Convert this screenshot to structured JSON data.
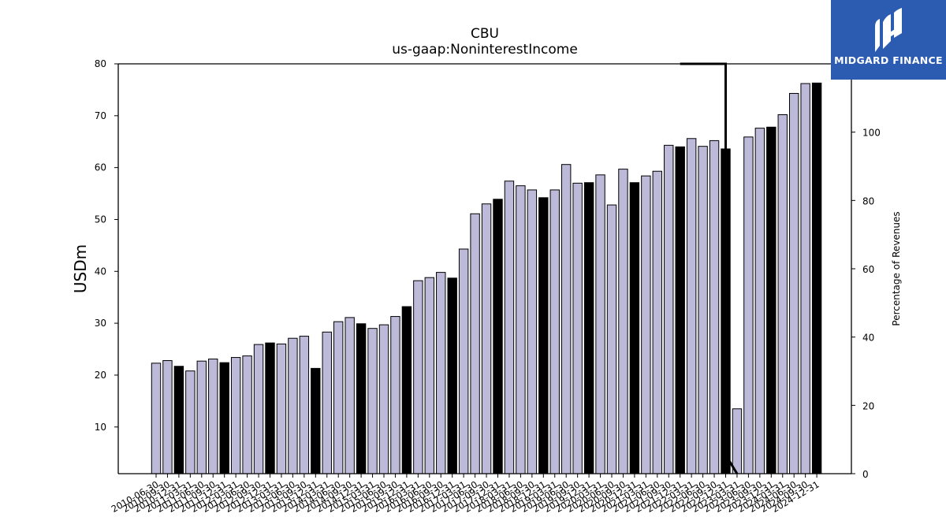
{
  "chart_data": {
    "type": "bar",
    "title": "CBU",
    "subtitle": "us-gaap:NoninterestIncome",
    "ylabel": "USDm",
    "ylabel_right": "Percentage of Revenues",
    "ylim": [
      1,
      80
    ],
    "ylim_right": [
      0,
      120
    ],
    "yticks": [
      10,
      20,
      30,
      40,
      50,
      60,
      70,
      80
    ],
    "yticks_right": [
      0,
      20,
      40,
      60,
      80,
      100
    ],
    "colors": {
      "quarter": "#bcb9d9",
      "annual": "#000000",
      "edge": "#000000"
    },
    "categories": [
      "2010-06-30",
      "2010-09-30",
      "2010-12-31",
      "2011-03-31",
      "2011-06-30",
      "2011-09-30",
      "2011-12-31",
      "2012-03-31",
      "2012-06-30",
      "2012-09-30",
      "2012-12-31",
      "2013-03-31",
      "2013-06-30",
      "2013-09-30",
      "2013-12-31",
      "2014-03-31",
      "2014-06-30",
      "2014-09-30",
      "2014-12-31",
      "2015-03-31",
      "2015-06-30",
      "2015-09-30",
      "2015-12-31",
      "2016-03-31",
      "2016-06-30",
      "2016-09-30",
      "2016-12-31",
      "2017-03-31",
      "2017-06-30",
      "2017-09-30",
      "2017-12-31",
      "2018-03-31",
      "2018-06-30",
      "2018-09-30",
      "2018-12-31",
      "2019-03-31",
      "2019-06-30",
      "2019-09-30",
      "2019-12-31",
      "2020-03-31",
      "2020-06-30",
      "2020-09-30",
      "2020-12-31",
      "2021-03-31",
      "2021-06-30",
      "2021-09-30",
      "2021-12-31",
      "2022-03-31",
      "2022-06-30",
      "2022-09-30",
      "2022-12-31",
      "2023-03-31",
      "2023-06-30",
      "2023-09-30",
      "2023-12-31",
      "2024-03-31",
      "2024-06-30",
      "2024-09-30",
      "2024-12-31"
    ],
    "values": [
      22.3,
      22.8,
      21.7,
      20.8,
      22.7,
      23.1,
      22.4,
      23.4,
      23.7,
      25.9,
      26.2,
      26.0,
      27.1,
      27.5,
      21.3,
      28.3,
      30.3,
      31.1,
      29.9,
      29.0,
      29.7,
      31.3,
      33.2,
      38.2,
      38.8,
      39.8,
      38.7,
      44.3,
      51.1,
      53.0,
      53.9,
      57.4,
      56.5,
      55.7,
      54.2,
      55.7,
      60.6,
      57.0,
      57.1,
      58.6,
      52.8,
      59.7,
      57.1,
      58.4,
      59.3,
      64.3,
      64.0,
      65.6,
      64.1,
      65.2,
      63.6,
      13.5,
      65.9,
      67.6,
      67.8,
      70.2,
      74.3,
      76.2,
      76.3
    ],
    "is_annual": [
      false,
      false,
      true,
      false,
      false,
      false,
      true,
      false,
      false,
      false,
      true,
      false,
      false,
      false,
      true,
      false,
      false,
      false,
      true,
      false,
      false,
      false,
      true,
      false,
      false,
      false,
      true,
      false,
      false,
      false,
      true,
      false,
      false,
      false,
      true,
      false,
      false,
      false,
      true,
      false,
      false,
      false,
      true,
      false,
      false,
      false,
      true,
      false,
      false,
      false,
      true,
      false,
      false,
      false,
      true,
      false,
      false,
      false,
      true
    ],
    "percentage_line": {
      "name": "Percentage of Revenues",
      "points": [
        [
          46,
          180
        ],
        [
          50,
          180
        ],
        [
          50,
          5.5
        ],
        [
          51,
          0
        ]
      ]
    }
  },
  "logo": {
    "text": "MIDGARD FINANCE"
  }
}
